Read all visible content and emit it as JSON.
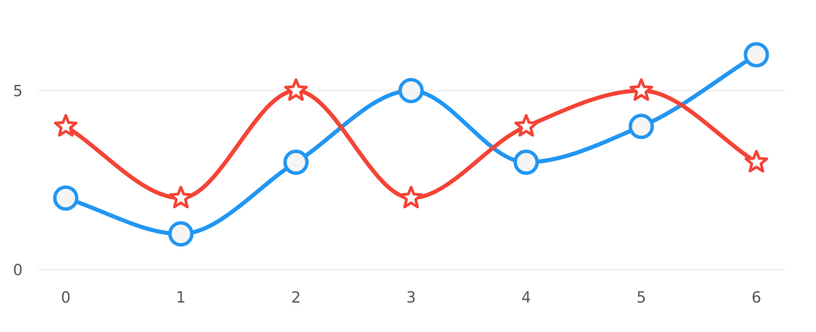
{
  "chart_data": {
    "type": "line",
    "title": "",
    "xlabel": "",
    "ylabel": "",
    "smooth": true,
    "grid": {
      "horizontal": true,
      "vertical": false,
      "color": "#eeeeee"
    },
    "legend": "none",
    "x": [
      0,
      1,
      2,
      3,
      4,
      5,
      6
    ],
    "x_tick_labels": [
      "0",
      "1",
      "2",
      "3",
      "4",
      "5",
      "6"
    ],
    "ylim": [
      0,
      6
    ],
    "y_ticks": [
      0,
      5
    ],
    "y_tick_labels": [
      "0",
      "5"
    ],
    "series": [
      {
        "color": "#2196f3",
        "marker": "circle",
        "marker_fill": "#f5f5f5",
        "values": [
          2,
          1,
          3,
          5,
          3,
          4,
          6
        ]
      },
      {
        "color": "#f44336",
        "marker": "star",
        "marker_fill": "#ffffff",
        "values": [
          4,
          2,
          5,
          2,
          4,
          5,
          3
        ]
      }
    ]
  }
}
